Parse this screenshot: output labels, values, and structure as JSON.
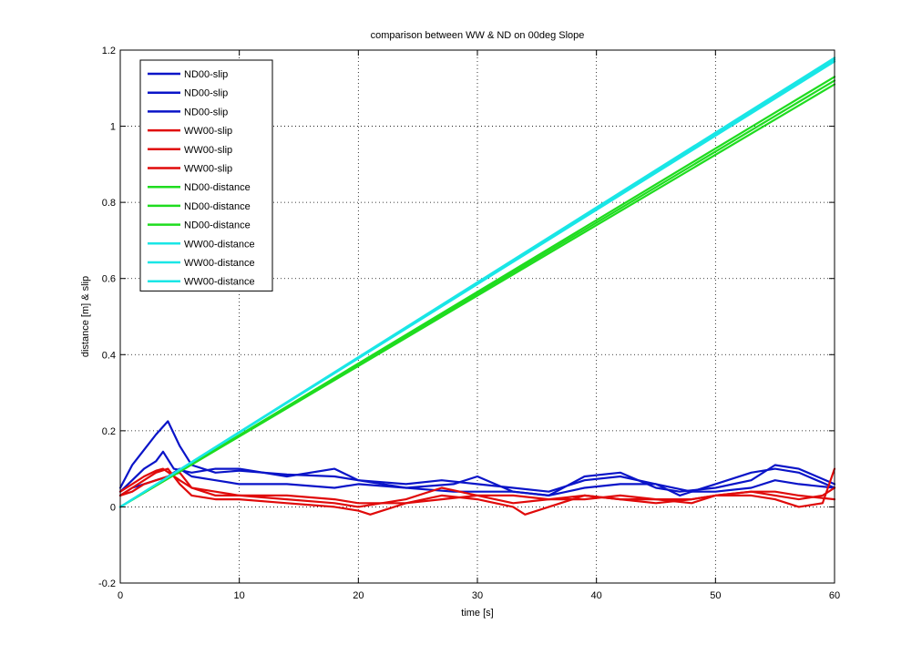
{
  "chart_data": {
    "type": "line",
    "title": "comparison between WW & ND on 00deg Slope",
    "xlabel": "time [s]",
    "ylabel": "distance [m] & slip",
    "xlim": [
      0,
      60
    ],
    "ylim": [
      -0.2,
      1.2
    ],
    "xticks": [
      0,
      10,
      20,
      30,
      40,
      50,
      60
    ],
    "yticks": [
      -0.2,
      0,
      0.2,
      0.4,
      0.6,
      0.8,
      1,
      1.2
    ],
    "xtick_labels": [
      "0",
      "10",
      "20",
      "30",
      "40",
      "50",
      "60"
    ],
    "ytick_labels": [
      "-0.2",
      "0",
      "0.2",
      "0.4",
      "0.6",
      "0.8",
      "1",
      "1.2"
    ],
    "grid": true,
    "legend_position": "top-left",
    "series": [
      {
        "name": "ND00-slip",
        "color": "#0a14c8",
        "x": [
          0,
          1,
          2,
          3,
          4,
          5,
          6,
          8,
          10,
          14,
          18,
          20,
          24,
          27,
          30,
          33,
          36,
          39,
          42,
          45,
          47,
          50,
          53,
          55,
          57,
          60
        ],
        "y": [
          0.05,
          0.11,
          0.15,
          0.19,
          0.225,
          0.16,
          0.11,
          0.09,
          0.095,
          0.085,
          0.08,
          0.07,
          0.06,
          0.07,
          0.06,
          0.05,
          0.04,
          0.07,
          0.08,
          0.06,
          0.03,
          0.06,
          0.09,
          0.1,
          0.09,
          0.05
        ]
      },
      {
        "name": "ND00-slip",
        "color": "#0a14c8",
        "x": [
          0,
          1,
          2,
          3,
          3.6,
          4.5,
          6,
          8,
          10,
          14,
          18,
          20,
          24,
          28,
          30,
          33,
          36,
          39,
          42,
          45,
          47,
          50,
          53,
          55,
          57,
          60
        ],
        "y": [
          0.04,
          0.07,
          0.1,
          0.12,
          0.145,
          0.1,
          0.09,
          0.1,
          0.1,
          0.08,
          0.1,
          0.07,
          0.05,
          0.06,
          0.08,
          0.04,
          0.03,
          0.08,
          0.09,
          0.05,
          0.04,
          0.05,
          0.07,
          0.11,
          0.1,
          0.06
        ]
      },
      {
        "name": "ND00-slip",
        "color": "#0a14c8",
        "x": [
          0,
          1,
          2,
          3,
          4,
          5,
          6,
          8,
          10,
          14,
          18,
          20,
          24,
          28,
          30,
          33,
          36,
          39,
          42,
          45,
          48,
          50,
          53,
          55,
          57,
          60
        ],
        "y": [
          0.03,
          0.05,
          0.06,
          0.07,
          0.08,
          0.1,
          0.08,
          0.07,
          0.06,
          0.06,
          0.05,
          0.06,
          0.05,
          0.04,
          0.04,
          0.04,
          0.03,
          0.05,
          0.06,
          0.06,
          0.04,
          0.04,
          0.05,
          0.07,
          0.06,
          0.05
        ]
      },
      {
        "name": "WW00-slip",
        "color": "#e00a0a",
        "x": [
          0,
          1,
          2,
          3,
          4,
          5,
          6,
          8,
          10,
          14,
          18,
          20,
          21,
          24,
          27,
          30,
          33,
          34,
          36,
          39,
          42,
          45,
          48,
          50,
          53,
          55,
          57,
          59,
          60
        ],
        "y": [
          0.03,
          0.05,
          0.07,
          0.09,
          0.1,
          0.06,
          0.03,
          0.02,
          0.02,
          0.01,
          0.0,
          -0.01,
          -0.02,
          0.01,
          0.03,
          0.02,
          0.0,
          -0.02,
          0.0,
          0.03,
          0.02,
          0.01,
          0.02,
          0.03,
          0.03,
          0.02,
          0.0,
          0.01,
          0.1
        ]
      },
      {
        "name": "WW00-slip",
        "color": "#e00a0a",
        "x": [
          0,
          1,
          2,
          3,
          3.6,
          5,
          6,
          8,
          10,
          14,
          18,
          20,
          24,
          27,
          30,
          33,
          36,
          39,
          42,
          45,
          48,
          50,
          53,
          55,
          57,
          59,
          60
        ],
        "y": [
          0.04,
          0.06,
          0.08,
          0.095,
          0.1,
          0.07,
          0.05,
          0.03,
          0.03,
          0.02,
          0.01,
          0.0,
          0.02,
          0.05,
          0.03,
          0.01,
          0.02,
          0.02,
          0.03,
          0.02,
          0.01,
          0.03,
          0.04,
          0.03,
          0.02,
          0.03,
          0.05
        ]
      },
      {
        "name": "WW00-slip",
        "color": "#e00a0a",
        "x": [
          0,
          1,
          2,
          3,
          4,
          5,
          6,
          8,
          10,
          14,
          18,
          20,
          24,
          27,
          30,
          33,
          36,
          39,
          42,
          45,
          48,
          50,
          53,
          55,
          57,
          60
        ],
        "y": [
          0.03,
          0.04,
          0.06,
          0.07,
          0.08,
          0.09,
          0.05,
          0.04,
          0.03,
          0.03,
          0.02,
          0.01,
          0.01,
          0.02,
          0.03,
          0.03,
          0.02,
          0.03,
          0.02,
          0.02,
          0.02,
          0.03,
          0.04,
          0.04,
          0.03,
          0.02
        ]
      },
      {
        "name": "ND00-distance",
        "color": "#1fdc1f",
        "x": [
          0,
          60
        ],
        "y": [
          0.0,
          1.13
        ]
      },
      {
        "name": "ND00-distance",
        "color": "#1fdc1f",
        "x": [
          0,
          60
        ],
        "y": [
          0.0,
          1.11
        ]
      },
      {
        "name": "ND00-distance",
        "color": "#1fdc1f",
        "x": [
          0,
          60
        ],
        "y": [
          0.0,
          1.12
        ]
      },
      {
        "name": "WW00-distance",
        "color": "#19e6e6",
        "x": [
          0,
          60
        ],
        "y": [
          0.0,
          1.175
        ]
      },
      {
        "name": "WW00-distance",
        "color": "#19e6e6",
        "x": [
          0,
          60
        ],
        "y": [
          0.0,
          1.17
        ]
      },
      {
        "name": "WW00-distance",
        "color": "#19e6e6",
        "x": [
          0,
          60
        ],
        "y": [
          0.0,
          1.18
        ]
      }
    ]
  }
}
